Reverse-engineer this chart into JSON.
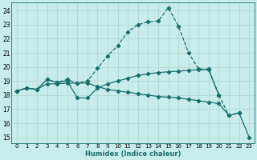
{
  "xlabel": "Humidex (Indice chaleur)",
  "bg_color": "#c8ecec",
  "grid_color": "#b0d8d0",
  "line_color": "#1a6e6e",
  "xlim": [
    -0.5,
    23.5
  ],
  "ylim": [
    14.6,
    24.55
  ],
  "xticks": [
    0,
    1,
    2,
    3,
    4,
    5,
    6,
    7,
    8,
    9,
    10,
    11,
    12,
    13,
    14,
    15,
    16,
    17,
    18,
    19,
    20,
    21,
    22,
    23
  ],
  "yticks": [
    15,
    16,
    17,
    18,
    19,
    20,
    21,
    22,
    23,
    24
  ],
  "series": [
    {
      "x": [
        0,
        1,
        2,
        3,
        4,
        5,
        6,
        7,
        8,
        9,
        10,
        11,
        12,
        13,
        14,
        15,
        16,
        17,
        18,
        19,
        20,
        21,
        22
      ],
      "y": [
        18.3,
        18.5,
        18.4,
        19.1,
        18.9,
        19.1,
        18.85,
        19.0,
        19.9,
        20.8,
        21.5,
        22.5,
        23.0,
        23.2,
        23.25,
        24.2,
        22.9,
        21.0,
        19.85,
        19.85,
        18.0,
        16.55,
        16.75
      ],
      "linestyle": "--",
      "linewidth": 0.9
    },
    {
      "x": [
        0,
        1,
        2,
        3,
        4,
        5,
        6,
        7,
        8,
        9,
        10,
        11,
        12,
        13,
        14,
        15,
        16,
        17,
        18,
        19,
        20
      ],
      "y": [
        18.3,
        18.5,
        18.4,
        19.1,
        18.9,
        19.0,
        17.8,
        17.8,
        18.5,
        18.8,
        19.0,
        19.2,
        19.4,
        19.5,
        19.6,
        19.65,
        19.7,
        19.75,
        19.8,
        19.8,
        18.0
      ],
      "linestyle": "-",
      "linewidth": 0.9
    },
    {
      "x": [
        0,
        1,
        2,
        3,
        4,
        5,
        6,
        7,
        8,
        9,
        10,
        11,
        12,
        13,
        14,
        15,
        16,
        17,
        18,
        19,
        20,
        21,
        22,
        23
      ],
      "y": [
        18.3,
        18.5,
        18.4,
        18.8,
        18.8,
        18.85,
        18.85,
        18.85,
        18.6,
        18.4,
        18.3,
        18.2,
        18.1,
        18.0,
        17.9,
        17.85,
        17.8,
        17.7,
        17.6,
        17.5,
        17.4,
        16.55,
        16.75,
        15.0
      ],
      "linestyle": "-",
      "linewidth": 0.9
    }
  ]
}
